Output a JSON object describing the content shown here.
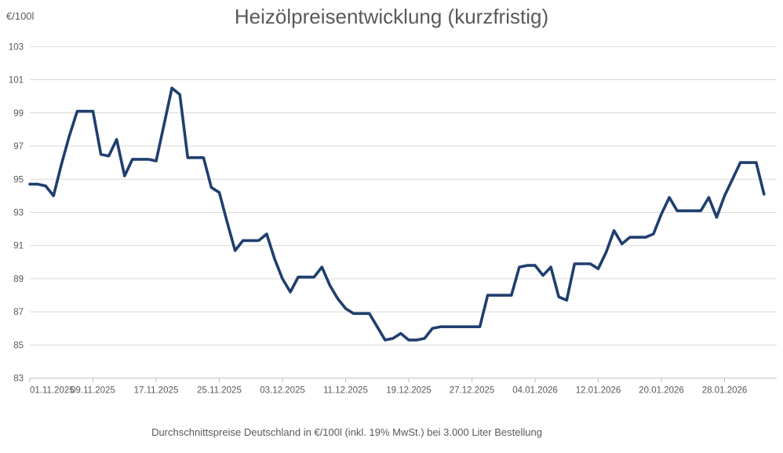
{
  "page": {
    "title": "Heizölpreisentwicklung (kurzfristig)",
    "y_axis_unit": "€/100l",
    "subtitle": "Durchschnittspreise Deutschland in €/100l (inkl. 19% MwSt.) bei 3.000 Liter Bestellung"
  },
  "colors": {
    "line": "#1f3f6e",
    "gridline": "#d9d9d9",
    "axis": "#bfbfbf",
    "text": "#595959"
  },
  "chart_data": {
    "type": "line",
    "title": "Heizölpreisentwicklung (kurzfristig)",
    "caption": "Durchschnittspreise Deutschland in €/100l (inkl. 19% MwSt.) bei 3.000 Liter Bestellung",
    "xlabel": "",
    "ylabel": "€/100l",
    "ylim": [
      83,
      103
    ],
    "grid": true,
    "legend": "none",
    "y_ticks": [
      83,
      85,
      87,
      89,
      91,
      93,
      95,
      97,
      99,
      101,
      103
    ],
    "x_tick_labels": [
      "01.11.2025",
      "09.11.2025",
      "17.11.2025",
      "25.11.2025",
      "03.12.2025",
      "11.12.2025",
      "19.12.2025",
      "27.12.2025",
      "04.01.2026",
      "12.01.2026",
      "20.01.2026",
      "28.01.2026"
    ],
    "x_tick_day_indices": [
      0,
      8,
      16,
      24,
      32,
      40,
      48,
      56,
      64,
      72,
      80,
      88
    ],
    "x": [
      "01.11.2025",
      "02.11.2025",
      "03.11.2025",
      "04.11.2025",
      "05.11.2025",
      "06.11.2025",
      "07.11.2025",
      "08.11.2025",
      "09.11.2025",
      "10.11.2025",
      "11.11.2025",
      "12.11.2025",
      "13.11.2025",
      "14.11.2025",
      "15.11.2025",
      "16.11.2025",
      "17.11.2025",
      "18.11.2025",
      "19.11.2025",
      "20.11.2025",
      "21.11.2025",
      "22.11.2025",
      "23.11.2025",
      "24.11.2025",
      "25.11.2025",
      "26.11.2025",
      "27.11.2025",
      "28.11.2025",
      "29.11.2025",
      "30.11.2025",
      "01.12.2025",
      "02.12.2025",
      "03.12.2025",
      "04.12.2025",
      "05.12.2025",
      "06.12.2025",
      "07.12.2025",
      "08.12.2025",
      "09.12.2025",
      "10.12.2025",
      "11.12.2025",
      "12.12.2025",
      "13.12.2025",
      "14.12.2025",
      "15.12.2025",
      "16.12.2025",
      "17.12.2025",
      "18.12.2025",
      "19.12.2025",
      "20.12.2025",
      "21.12.2025",
      "22.12.2025",
      "23.12.2025",
      "24.12.2025",
      "25.12.2025",
      "26.12.2025",
      "27.12.2025",
      "28.12.2025",
      "29.12.2025",
      "30.12.2025",
      "31.12.2025",
      "01.01.2026",
      "02.01.2026",
      "03.01.2026",
      "04.01.2026",
      "05.01.2026",
      "06.01.2026",
      "07.01.2026",
      "08.01.2026",
      "09.01.2026",
      "10.01.2026",
      "11.01.2026",
      "12.01.2026",
      "13.01.2026",
      "14.01.2026",
      "15.01.2026",
      "16.01.2026",
      "17.01.2026",
      "18.01.2026",
      "19.01.2026",
      "20.01.2026",
      "21.01.2026",
      "22.01.2026",
      "23.01.2026",
      "24.01.2026",
      "25.01.2026",
      "26.01.2026",
      "27.01.2026",
      "28.01.2026",
      "29.01.2026",
      "30.01.2026",
      "31.01.2026",
      "01.02.2026",
      "02.02.2026"
    ],
    "values": [
      94.7,
      94.7,
      94.6,
      94.0,
      95.9,
      97.6,
      99.1,
      99.1,
      99.1,
      96.5,
      96.4,
      97.4,
      95.2,
      96.2,
      96.2,
      96.2,
      96.1,
      98.3,
      100.5,
      100.1,
      96.3,
      96.3,
      96.3,
      94.5,
      94.2,
      92.4,
      90.7,
      91.3,
      91.3,
      91.3,
      91.7,
      90.2,
      89.0,
      88.2,
      89.1,
      89.1,
      89.1,
      89.7,
      88.6,
      87.8,
      87.2,
      86.9,
      86.9,
      86.9,
      86.1,
      85.3,
      85.4,
      85.7,
      85.3,
      85.3,
      85.4,
      86.0,
      86.1,
      86.1,
      86.1,
      86.1,
      86.1,
      86.1,
      88.0,
      88.0,
      88.0,
      88.0,
      89.7,
      89.8,
      89.8,
      89.2,
      89.7,
      87.9,
      87.7,
      89.9,
      89.9,
      89.9,
      89.6,
      90.6,
      91.9,
      91.1,
      91.5,
      91.5,
      91.5,
      91.7,
      92.9,
      93.9,
      93.1,
      93.1,
      93.1,
      93.1,
      93.9,
      92.7,
      94.0,
      95.0,
      96.0,
      96.0,
      96.0,
      94.1
    ]
  }
}
